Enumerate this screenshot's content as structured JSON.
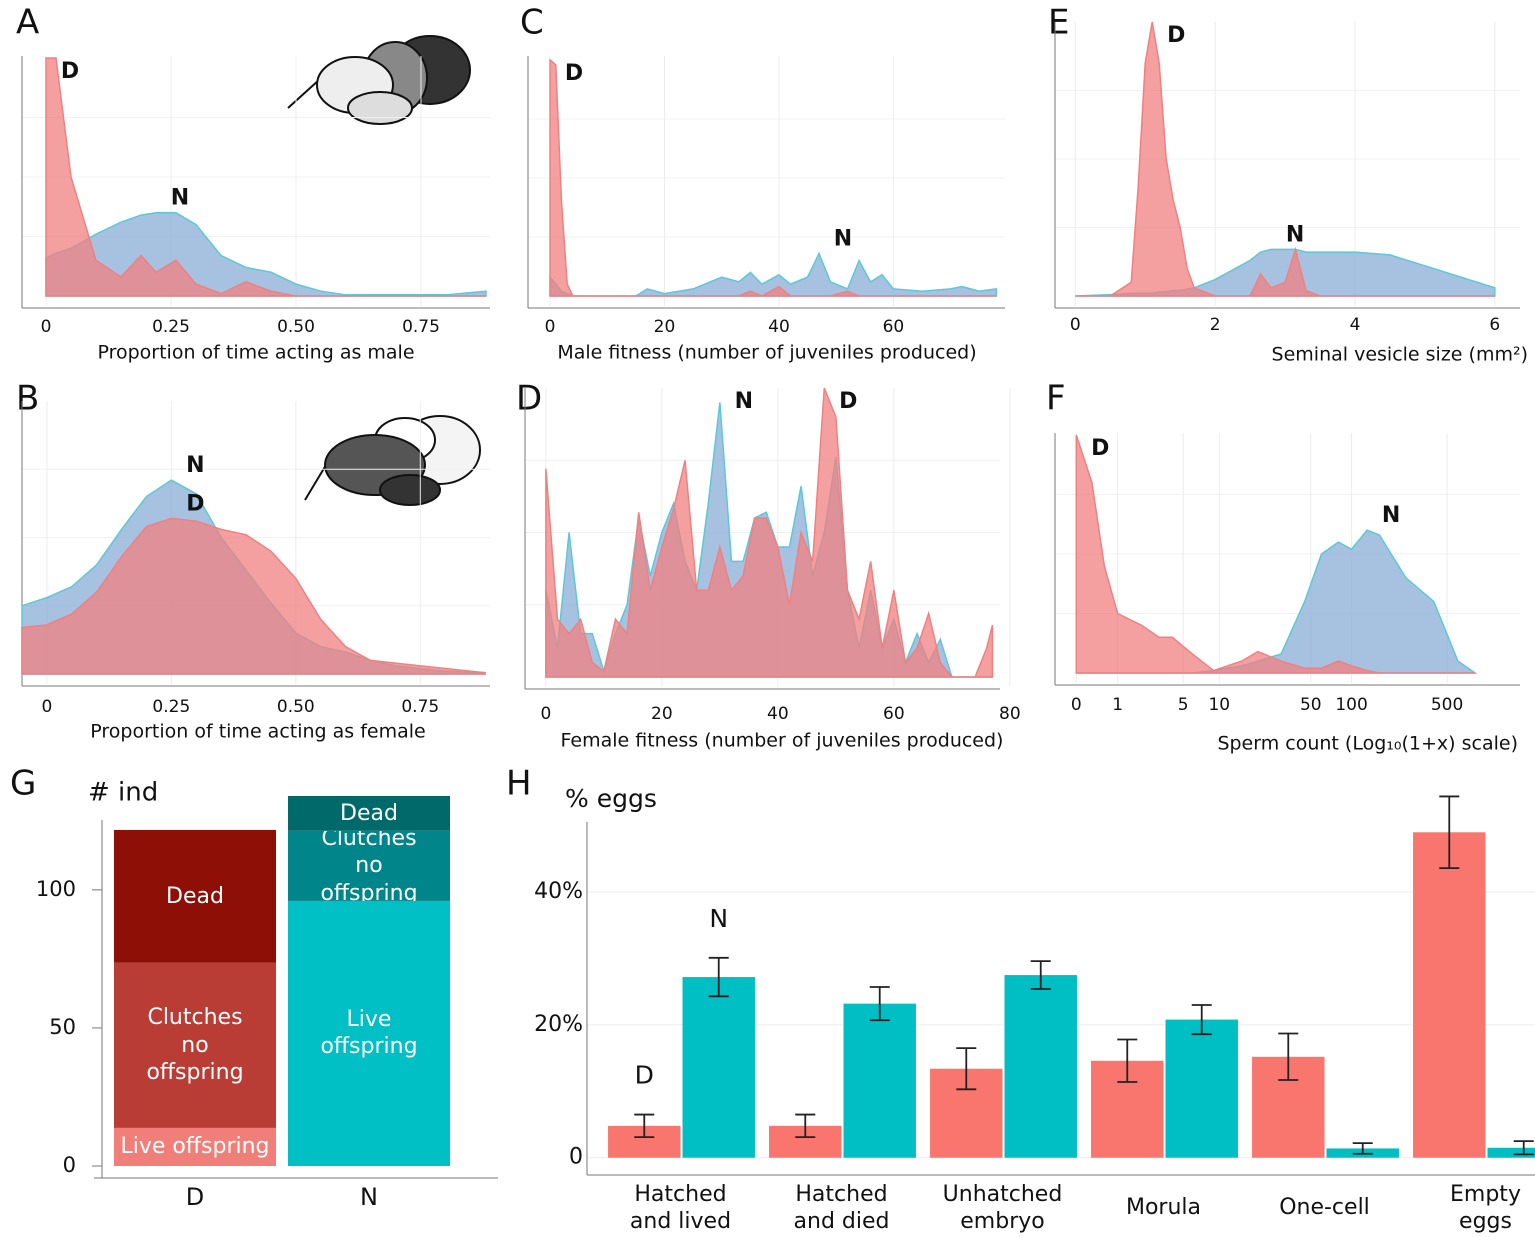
{
  "chart_data": [
    {
      "panel": "A",
      "type": "density",
      "xlabel": "Proportion of time acting as male",
      "x": [
        0,
        0.02,
        0.05,
        0.1,
        0.15,
        0.19,
        0.22,
        0.26,
        0.3,
        0.35,
        0.4,
        0.45,
        0.5,
        0.55,
        0.6,
        0.7,
        0.8,
        0.88
      ],
      "series": [
        {
          "name": "N",
          "color": "#8aaed6",
          "label_color": "#2f5597",
          "values": [
            0.16,
            0.18,
            0.2,
            0.26,
            0.31,
            0.34,
            0.35,
            0.35,
            0.3,
            0.17,
            0.12,
            0.1,
            0.05,
            0.02,
            0.005,
            0.005,
            0.005,
            0.02
          ]
        },
        {
          "name": "D",
          "color": "#f08080",
          "label_color": "#c55a11",
          "values": [
            1.0,
            1.0,
            0.5,
            0.15,
            0.08,
            0.17,
            0.1,
            0.15,
            0.05,
            0.01,
            0.06,
            0.02,
            0,
            0,
            0,
            0,
            0,
            0
          ]
        }
      ],
      "xlim": [
        -0.048,
        0.888
      ],
      "xticks": [
        0,
        0.25,
        {
          "value": 0.5,
          "label": "0.50"
        },
        0.75
      ],
      "ylim": [
        0,
        1
      ],
      "grid": true
    },
    {
      "panel": "C",
      "type": "density",
      "xlabel": "Male fitness (number of juveniles produced)",
      "x": [
        0,
        1,
        2,
        3,
        4,
        8,
        15,
        17,
        20,
        25,
        30,
        33,
        35,
        37,
        40,
        42,
        45,
        47,
        49,
        52,
        54,
        56,
        58,
        60,
        65,
        70,
        72,
        75,
        78
      ],
      "series": [
        {
          "name": "N",
          "color": "#8aaed6",
          "label_color": "#2f5597",
          "values": [
            0.08,
            0.05,
            0.02,
            0.01,
            0,
            0,
            0,
            0.03,
            0.01,
            0.03,
            0.08,
            0.06,
            0.1,
            0.05,
            0.09,
            0.05,
            0.08,
            0.18,
            0.06,
            0.03,
            0.15,
            0.06,
            0.09,
            0.03,
            0.02,
            0.03,
            0.04,
            0.02,
            0.03
          ]
        },
        {
          "name": "D",
          "color": "#f08080",
          "label_color": "#c55a11",
          "values": [
            1.0,
            0.98,
            0.4,
            0.05,
            0,
            0,
            0,
            0,
            0,
            0,
            0,
            0,
            0.02,
            0,
            0.04,
            0,
            0,
            0,
            0,
            0.02,
            0,
            0,
            0,
            0,
            0,
            0,
            0,
            0,
            0
          ]
        }
      ],
      "xlim": [
        -3.85,
        79.5
      ],
      "xticks": [
        0,
        20,
        40,
        60
      ],
      "ylim": [
        0,
        1
      ],
      "grid": true
    },
    {
      "panel": "E",
      "type": "density",
      "xlabel": "Seminal vesicle size (mm²)",
      "x": [
        0,
        0.5,
        0.8,
        0.9,
        1.0,
        1.1,
        1.2,
        1.3,
        1.4,
        1.5,
        1.6,
        1.7,
        2.0,
        2.5,
        2.65,
        2.8,
        3.0,
        3.15,
        3.3,
        3.5,
        4,
        4.5,
        5,
        5.5,
        6
      ],
      "series": [
        {
          "name": "N",
          "color": "#8aaed6",
          "label_color": "#2f5597",
          "values": [
            0,
            0.005,
            0.01,
            0.01,
            0.01,
            0.01,
            0.015,
            0.015,
            0.02,
            0.02,
            0.025,
            0.03,
            0.06,
            0.13,
            0.16,
            0.17,
            0.17,
            0.17,
            0.16,
            0.16,
            0.16,
            0.15,
            0.11,
            0.07,
            0.03
          ]
        },
        {
          "name": "D",
          "color": "#f08080",
          "label_color": "#c55a11",
          "values": [
            0,
            0,
            0.05,
            0.4,
            0.85,
            1.0,
            0.85,
            0.5,
            0.35,
            0.25,
            0.1,
            0.03,
            0,
            0,
            0.08,
            0.03,
            0.05,
            0.17,
            0.02,
            0,
            0,
            0,
            0,
            0,
            0
          ]
        }
      ],
      "xlim": [
        -0.29,
        6.36
      ],
      "xticks": [
        0,
        2,
        4,
        6
      ],
      "ylim": [
        0,
        1
      ],
      "grid": true
    },
    {
      "panel": "B",
      "type": "density",
      "xlabel": "Proportion of time acting as female",
      "x": [
        -0.05,
        0,
        0.05,
        0.1,
        0.15,
        0.2,
        0.25,
        0.3,
        0.35,
        0.4,
        0.45,
        0.5,
        0.55,
        0.6,
        0.65,
        0.7,
        0.8,
        0.88
      ],
      "series": [
        {
          "name": "N",
          "color": "#8aaed6",
          "label_color": "#2f5597",
          "values": [
            0.25,
            0.28,
            0.32,
            0.4,
            0.53,
            0.65,
            0.71,
            0.66,
            0.5,
            0.38,
            0.26,
            0.15,
            0.1,
            0.08,
            0.05,
            0.03,
            0.01,
            0.005
          ]
        },
        {
          "name": "D",
          "color": "#f08080",
          "label_color": "#c55a11",
          "values": [
            0.17,
            0.18,
            0.22,
            0.3,
            0.43,
            0.54,
            0.57,
            0.56,
            0.53,
            0.51,
            0.45,
            0.35,
            0.2,
            0.1,
            0.05,
            0.04,
            0.02,
            0.005
          ]
        }
      ],
      "xlim": [
        -0.05,
        0.89
      ],
      "xticks": [
        0,
        0.25,
        {
          "value": 0.5,
          "label": "0.50"
        },
        0.75
      ],
      "ylim": [
        0,
        1
      ],
      "grid": true
    },
    {
      "panel": "D",
      "type": "density",
      "xlabel": "Female fitness (number of juveniles produced)",
      "x": [
        0,
        2,
        4,
        6,
        8,
        10,
        12,
        14,
        16,
        18,
        20,
        22,
        24,
        26,
        28,
        30,
        32,
        34,
        36,
        38,
        40,
        42,
        44,
        46,
        48,
        50,
        52,
        54,
        56,
        58,
        60,
        62,
        64,
        66,
        68,
        70,
        72,
        74,
        76,
        77
      ],
      "series": [
        {
          "name": "N",
          "color": "#8aaed6",
          "label_color": "#2f5597",
          "values": [
            0.3,
            0.1,
            0.5,
            0.15,
            0.15,
            0.02,
            0.15,
            0.25,
            0.55,
            0.35,
            0.5,
            0.6,
            0.4,
            0.3,
            0.6,
            0.95,
            0.4,
            0.4,
            0.55,
            0.57,
            0.45,
            0.45,
            0.66,
            0.35,
            0.5,
            0.76,
            0.3,
            0.1,
            0.3,
            0.1,
            0.2,
            0.05,
            0.15,
            0.05,
            0.13,
            0,
            0,
            0,
            0,
            0
          ]
        },
        {
          "name": "D",
          "color": "#f08080",
          "label_color": "#c55a11",
          "values": [
            0.72,
            0.2,
            0.15,
            0.2,
            0.05,
            0.02,
            0.2,
            0.15,
            0.57,
            0.3,
            0.45,
            0.58,
            0.75,
            0.3,
            0.3,
            0.45,
            0.3,
            0.35,
            0.55,
            0.55,
            0.45,
            0.25,
            0.5,
            0.4,
            1.0,
            0.9,
            0.3,
            0.2,
            0.4,
            0.1,
            0.3,
            0.05,
            0.1,
            0.22,
            0.05,
            0,
            0,
            0,
            0.1,
            0.18
          ]
        }
      ],
      "xlim": [
        -3.6,
        78.3
      ],
      "xticks": [
        0,
        20,
        40,
        60,
        80
      ],
      "ylim": [
        0,
        1
      ],
      "grid": true
    },
    {
      "panel": "F",
      "type": "density",
      "xlabel": "Sperm count (Log₁₀(1+x) scale)",
      "xscale": "log1p",
      "x": [
        0,
        0.3,
        0.6,
        1,
        2,
        3,
        4,
        6,
        9,
        15,
        20,
        30,
        45,
        60,
        80,
        100,
        130,
        160,
        250,
        400,
        600,
        800
      ],
      "series": [
        {
          "name": "N",
          "color": "#8aaed6",
          "label_color": "#2f5597",
          "values": [
            0,
            0,
            0,
            0,
            0,
            0,
            0,
            0,
            0.01,
            0.03,
            0.05,
            0.08,
            0.3,
            0.5,
            0.55,
            0.52,
            0.6,
            0.58,
            0.4,
            0.3,
            0.05,
            0
          ]
        },
        {
          "name": "D",
          "color": "#f08080",
          "label_color": "#c55a11",
          "values": [
            1.0,
            0.8,
            0.45,
            0.25,
            0.2,
            0.15,
            0.15,
            0.08,
            0.01,
            0.05,
            0.09,
            0.05,
            0.02,
            0.02,
            0.05,
            0.03,
            0.01,
            0,
            0,
            0,
            0,
            0
          ]
        }
      ],
      "xlim": [
        -0.3,
        1700
      ],
      "xticks": [
        0,
        1,
        5,
        10,
        50,
        100,
        500
      ],
      "ylim": [
        0,
        1
      ],
      "grid": true
    },
    {
      "panel": "G",
      "type": "stacked_bar",
      "ylabel": "# ind",
      "categories": [
        "D",
        "N"
      ],
      "category_colors": [
        "#c00000",
        "#2e75b6"
      ],
      "series": [
        {
          "name": "Live offspring",
          "colors": [
            "#f07f7a",
            "#00c0c5"
          ],
          "values": [
            13.8,
            96
          ]
        },
        {
          "name": "Clutches no offspring",
          "colors": [
            "#b93c35",
            "#00868a"
          ],
          "values": [
            59.8,
            25.4
          ]
        },
        {
          "name": "Dead",
          "colors": [
            "#8e0f06",
            "#006a6a"
          ],
          "values": [
            48.1,
            12.6
          ]
        }
      ],
      "ylim": [
        0,
        134
      ],
      "yticks": [
        0,
        50,
        100
      ]
    },
    {
      "panel": "H",
      "type": "bar",
      "ylabel": "% eggs",
      "categories": [
        "Hatched and lived",
        "Hatched and died",
        "Unhatched embryo",
        "Morula",
        "One-cell",
        "Empty eggs"
      ],
      "series": [
        {
          "name": "D",
          "color": "#f8766d",
          "label_color": "#d7191c",
          "values": [
            4.8,
            4.8,
            13.4,
            14.6,
            15.2,
            49.0
          ],
          "errors": [
            1.7,
            1.7,
            3.1,
            3.2,
            3.5,
            5.4
          ]
        },
        {
          "name": "N",
          "color": "#00bfc4",
          "label_color": "#2e86c1",
          "values": [
            27.2,
            23.2,
            27.5,
            20.8,
            1.4,
            1.5
          ],
          "errors": [
            2.9,
            2.5,
            2.1,
            2.2,
            0.8,
            1.0
          ]
        }
      ],
      "ylim": [
        -2.6,
        51
      ],
      "yticks": [
        0,
        {
          "value": 20,
          "label": "20%"
        },
        {
          "value": 40,
          "label": "40%"
        }
      ],
      "grid": true
    }
  ]
}
